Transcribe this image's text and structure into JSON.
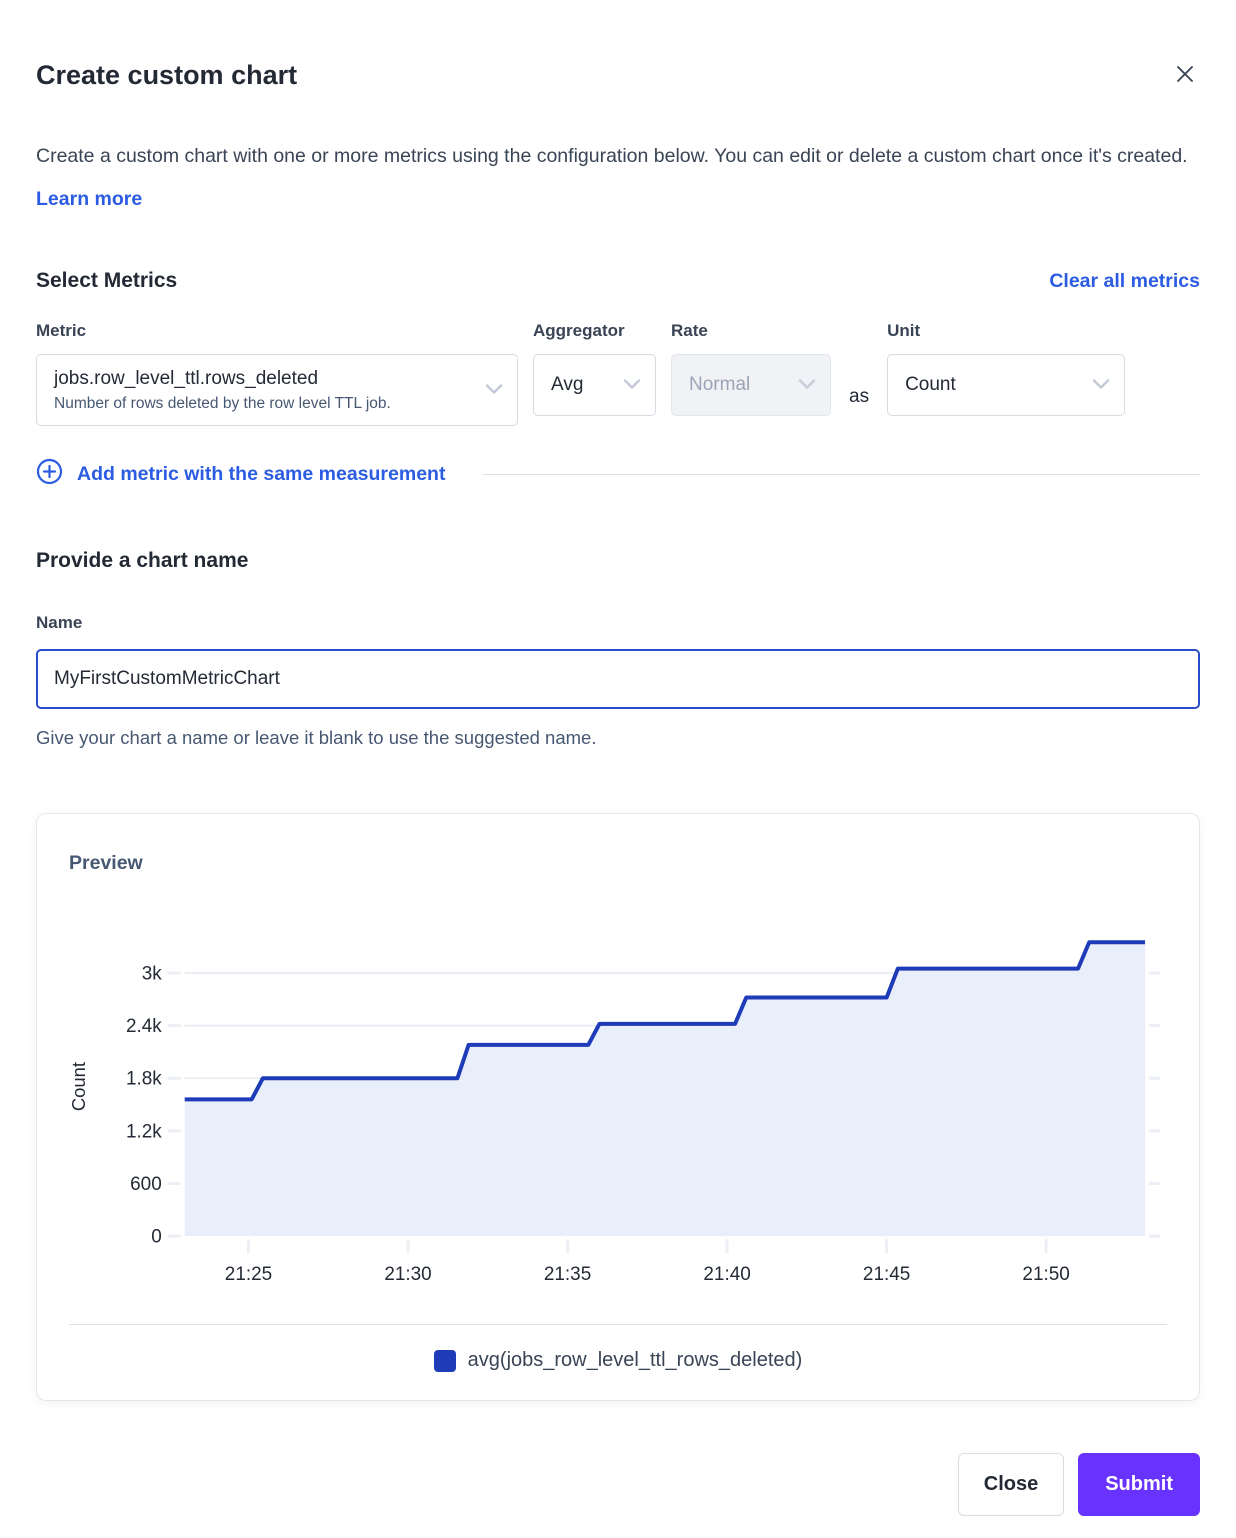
{
  "dialog": {
    "title": "Create custom chart",
    "description": "Create a custom chart with one or more metrics using the configuration below. You can edit or delete a custom chart once it's created.",
    "learn_more": "Learn more"
  },
  "metrics": {
    "heading": "Select Metrics",
    "clear_all": "Clear all metrics",
    "labels": {
      "metric": "Metric",
      "aggregator": "Aggregator",
      "rate": "Rate",
      "unit": "Unit",
      "as": "as"
    },
    "row": {
      "metric": "jobs.row_level_ttl.rows_deleted",
      "metric_description": "Number of rows deleted by the row level TTL job.",
      "aggregator": "Avg",
      "rate": "Normal",
      "rate_disabled": true,
      "unit": "Count"
    },
    "add_metric": "Add metric with the same measurement"
  },
  "chart_name": {
    "heading": "Provide a chart name",
    "label": "Name",
    "value": "MyFirstCustomMetricChart",
    "helper": "Give your chart a name or leave it blank to use the suggested name."
  },
  "preview": {
    "heading": "Preview"
  },
  "chart_data": {
    "type": "area",
    "step_like": true,
    "title": "Preview",
    "xlabel": "",
    "ylabel": "Count",
    "x_start_time": "21:23",
    "x_end_time": "21:53",
    "x_range_minutes": [
      0,
      30.1
    ],
    "ylim": [
      0,
      3410
    ],
    "grid": true,
    "legend_position": "bottom",
    "x_ticks": [
      {
        "t": 2.0,
        "label": "21:25"
      },
      {
        "t": 7.0,
        "label": "21:30"
      },
      {
        "t": 12.0,
        "label": "21:35"
      },
      {
        "t": 17.0,
        "label": "21:40"
      },
      {
        "t": 22.0,
        "label": "21:45"
      },
      {
        "t": 27.0,
        "label": "21:50"
      }
    ],
    "y_ticks": [
      {
        "v": 0,
        "label": "0"
      },
      {
        "v": 600,
        "label": "600"
      },
      {
        "v": 1200,
        "label": "1.2k"
      },
      {
        "v": 1800,
        "label": "1.8k"
      },
      {
        "v": 2400,
        "label": "2.4k"
      },
      {
        "v": 3000,
        "label": "3k"
      }
    ],
    "series": [
      {
        "name": "avg(jobs_row_level_ttl_rows_deleted)",
        "color": "#1e3cb8",
        "fill": "#e9eefb",
        "points_minutes_value": [
          [
            0,
            1560
          ],
          [
            2.1,
            1560
          ],
          [
            2.45,
            1800
          ],
          [
            8.55,
            1800
          ],
          [
            8.9,
            2180
          ],
          [
            12.65,
            2180
          ],
          [
            13.0,
            2420
          ],
          [
            17.25,
            2420
          ],
          [
            17.6,
            2720
          ],
          [
            22.0,
            2720
          ],
          [
            22.35,
            3050
          ],
          [
            28.0,
            3050
          ],
          [
            28.35,
            3350
          ],
          [
            30.1,
            3350
          ]
        ]
      }
    ]
  },
  "footer": {
    "close": "Close",
    "submit": "Submit"
  },
  "colors": {
    "heading": "#242a35",
    "body": "#394455",
    "muted": "#475872",
    "link": "#2b5ce2",
    "border": "#d6dbe3",
    "grid": "#e6e9f0",
    "tick": "#eceff4",
    "line": "#1e3cb8",
    "area_fill": "#e9eefb",
    "primary_button": "#6933ff"
  },
  "icons": {
    "close": "x-mark",
    "chevron_down": "chevron-down",
    "add": "plus-circle"
  }
}
